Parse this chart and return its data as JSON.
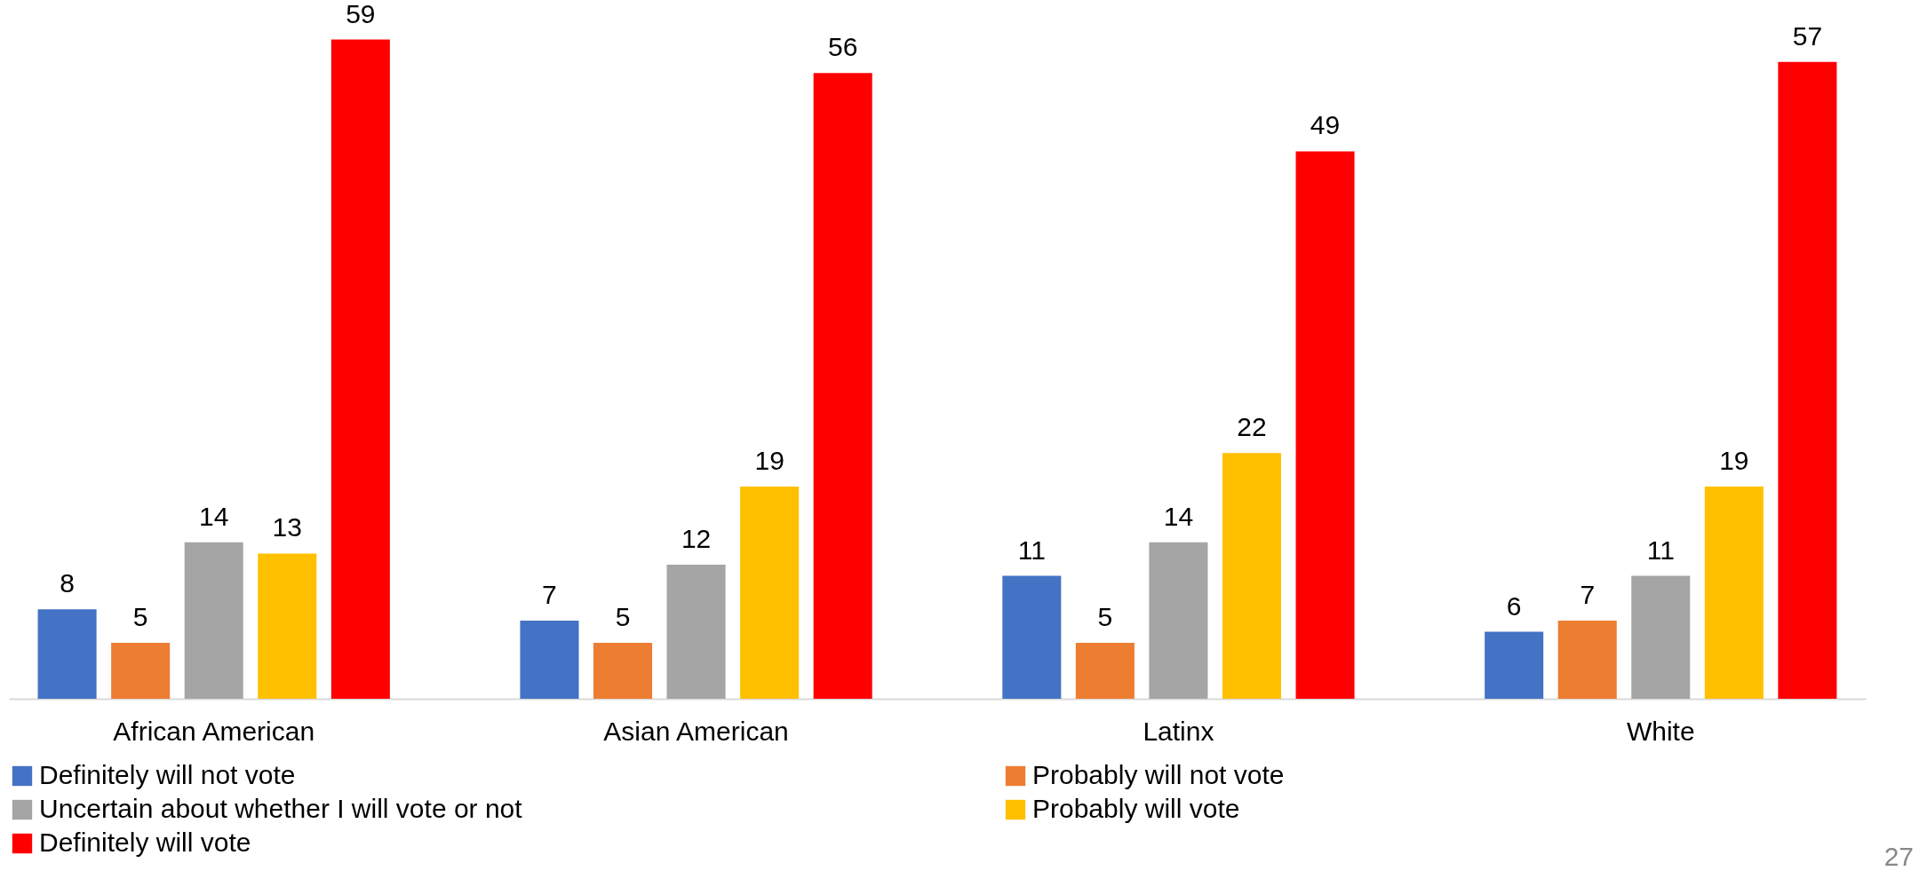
{
  "chart_data": {
    "type": "bar",
    "categories": [
      "African American",
      "Asian American",
      "Latinx",
      "White"
    ],
    "series": [
      {
        "name": "Definitely will not vote",
        "color": "#4472c4",
        "values": [
          8,
          7,
          11,
          6
        ]
      },
      {
        "name": "Probably will not vote",
        "color": "#ed7d31",
        "values": [
          5,
          5,
          5,
          7
        ]
      },
      {
        "name": "Uncertain about whether I will vote or not",
        "color": "#a5a5a5",
        "values": [
          14,
          12,
          14,
          11
        ]
      },
      {
        "name": "Probably will vote",
        "color": "#ffc000",
        "values": [
          13,
          19,
          22,
          19
        ]
      },
      {
        "name": "Definitely will vote",
        "color": "#ff0000",
        "values": [
          59,
          56,
          49,
          57
        ]
      }
    ],
    "data_labels": true,
    "grid": false,
    "legend": "bottom",
    "annotations": [
      "27"
    ]
  }
}
